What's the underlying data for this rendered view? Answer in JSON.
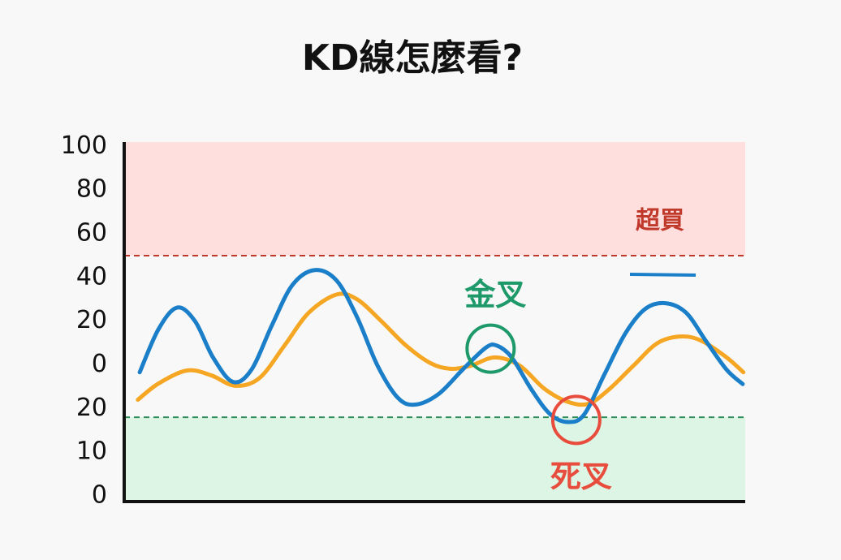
{
  "chart_data": {
    "type": "line",
    "title": "KD線怎麼看?",
    "ylim": [
      -0.13,
      8.1
    ],
    "xlim": [
      0,
      100
    ],
    "yticks": [
      {
        "value": 0,
        "label": "0"
      },
      {
        "value": 1,
        "label": "10"
      },
      {
        "value": 2,
        "label": "20"
      },
      {
        "value": 3,
        "label": "0"
      },
      {
        "value": 4,
        "label": "20"
      },
      {
        "value": 5,
        "label": "40"
      },
      {
        "value": 6,
        "label": "60"
      },
      {
        "value": 7,
        "label": "80"
      },
      {
        "value": 8,
        "label": "100"
      }
    ],
    "overbought": {
      "value": 5.5,
      "label": "超買",
      "color": "#c0392b",
      "fill": "#ffdede"
    },
    "oversold": {
      "value": 1.8,
      "color": "#2e8b57",
      "fill": "#dcf5e4"
    },
    "series": [
      {
        "color": "#1a7fc8",
        "x": [
          2.5,
          5.5,
          8.5,
          11.4,
          14.3,
          17.5,
          20.5,
          23.8,
          27.1,
          30.7,
          34.2,
          37.5,
          40.8,
          44.1,
          46.9,
          50.6,
          54.5,
          58.2,
          60.0,
          62.4,
          65.6,
          68.6,
          71.5,
          74.1,
          77.4,
          80.7,
          83.9,
          87.2,
          90.5,
          93.7,
          97.0,
          99.6
        ],
        "values": [
          2.83,
          3.81,
          4.31,
          4.0,
          3.17,
          2.61,
          2.89,
          3.91,
          4.83,
          5.17,
          4.93,
          4.09,
          2.98,
          2.24,
          2.09,
          2.33,
          2.89,
          3.39,
          3.44,
          3.17,
          2.43,
          1.87,
          1.69,
          1.87,
          2.8,
          3.72,
          4.28,
          4.41,
          4.19,
          3.54,
          2.89,
          2.56
        ]
      },
      {
        "color": "#f5a623",
        "x": [
          2.2,
          5.5,
          10.1,
          14.0,
          17.9,
          21.8,
          25.8,
          29.7,
          34.2,
          37.5,
          41.4,
          45.4,
          49.3,
          52.5,
          55.8,
          59.7,
          63.7,
          67.6,
          71.5,
          74.8,
          78.0,
          82.0,
          85.9,
          89.8,
          93.1,
          97.0,
          99.7
        ],
        "values": [
          2.2,
          2.57,
          2.87,
          2.76,
          2.52,
          2.7,
          3.44,
          4.19,
          4.61,
          4.5,
          4.0,
          3.44,
          3.04,
          2.91,
          2.98,
          3.17,
          2.98,
          2.46,
          2.15,
          2.11,
          2.43,
          2.98,
          3.5,
          3.65,
          3.54,
          3.17,
          2.83
        ]
      }
    ],
    "annotations": [
      {
        "text": "金叉",
        "x": 59.0,
        "y": 3.37,
        "color": "#1e9a6a"
      },
      {
        "text": "死叉",
        "x": 72.8,
        "y": 1.74,
        "color": "#e74c3c"
      }
    ]
  }
}
